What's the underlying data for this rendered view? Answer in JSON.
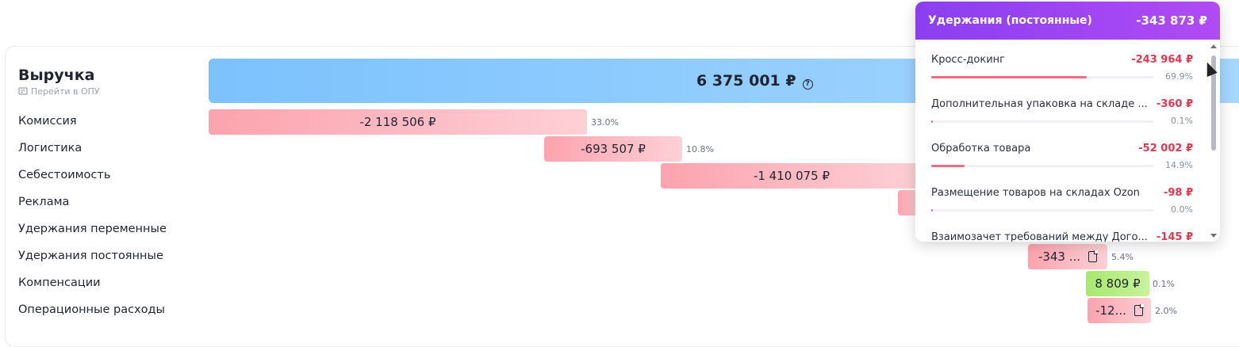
{
  "header": {
    "title": "Выручка",
    "subtitle_link": "Перейти в ОПУ"
  },
  "total_bar": {
    "value": "6 375 001 ₽",
    "help": "?"
  },
  "rows": [
    {
      "label": "Комиссия",
      "value": "-2 118 506 ₽",
      "pct": "33.0%"
    },
    {
      "label": "Логистика",
      "value": "-693 507 ₽",
      "pct": "10.8%"
    },
    {
      "label": "Себестоимость",
      "value": "-1 410 075 ₽",
      "pct": ""
    },
    {
      "label": "Реклама",
      "value": "",
      "pct": ""
    },
    {
      "label": "Удержания переменные",
      "value": "",
      "pct": ""
    },
    {
      "label": "Удержания постоянные",
      "value": "-343 ...",
      "pct": "5.4%"
    },
    {
      "label": "Компенсации",
      "value": "8 809 ₽",
      "pct": "0.1%"
    },
    {
      "label": "Операционные расходы",
      "value": "-12...",
      "pct": "2.0%"
    }
  ],
  "popup": {
    "title": "Удержания (постоянные)",
    "total": "-343 873 ₽",
    "items": [
      {
        "name": "Кросс-докинг",
        "value": "-243 964 ₽",
        "pct": "69.9%",
        "share": 0.699
      },
      {
        "name": "Дополнительная упаковка на складе ...",
        "value": "-360 ₽",
        "pct": "0.1%",
        "share": 0.001
      },
      {
        "name": "Обработка товара",
        "value": "-52 002 ₽",
        "pct": "14.9%",
        "share": 0.149
      },
      {
        "name": "Размещение товаров на складах Ozon",
        "value": "-98 ₽",
        "pct": "0.0%",
        "share": 0.0
      },
      {
        "name": "Взаимозачет требований между Дого...",
        "value": "-145 ₽",
        "pct": "",
        "share": 0.0
      }
    ]
  },
  "colors": {
    "negative": "#fca3ae",
    "positive": "#a7e86e",
    "total": "#7cc2fd",
    "popup_header": "#8b3ff0",
    "negative_text": "#e5364f"
  }
}
